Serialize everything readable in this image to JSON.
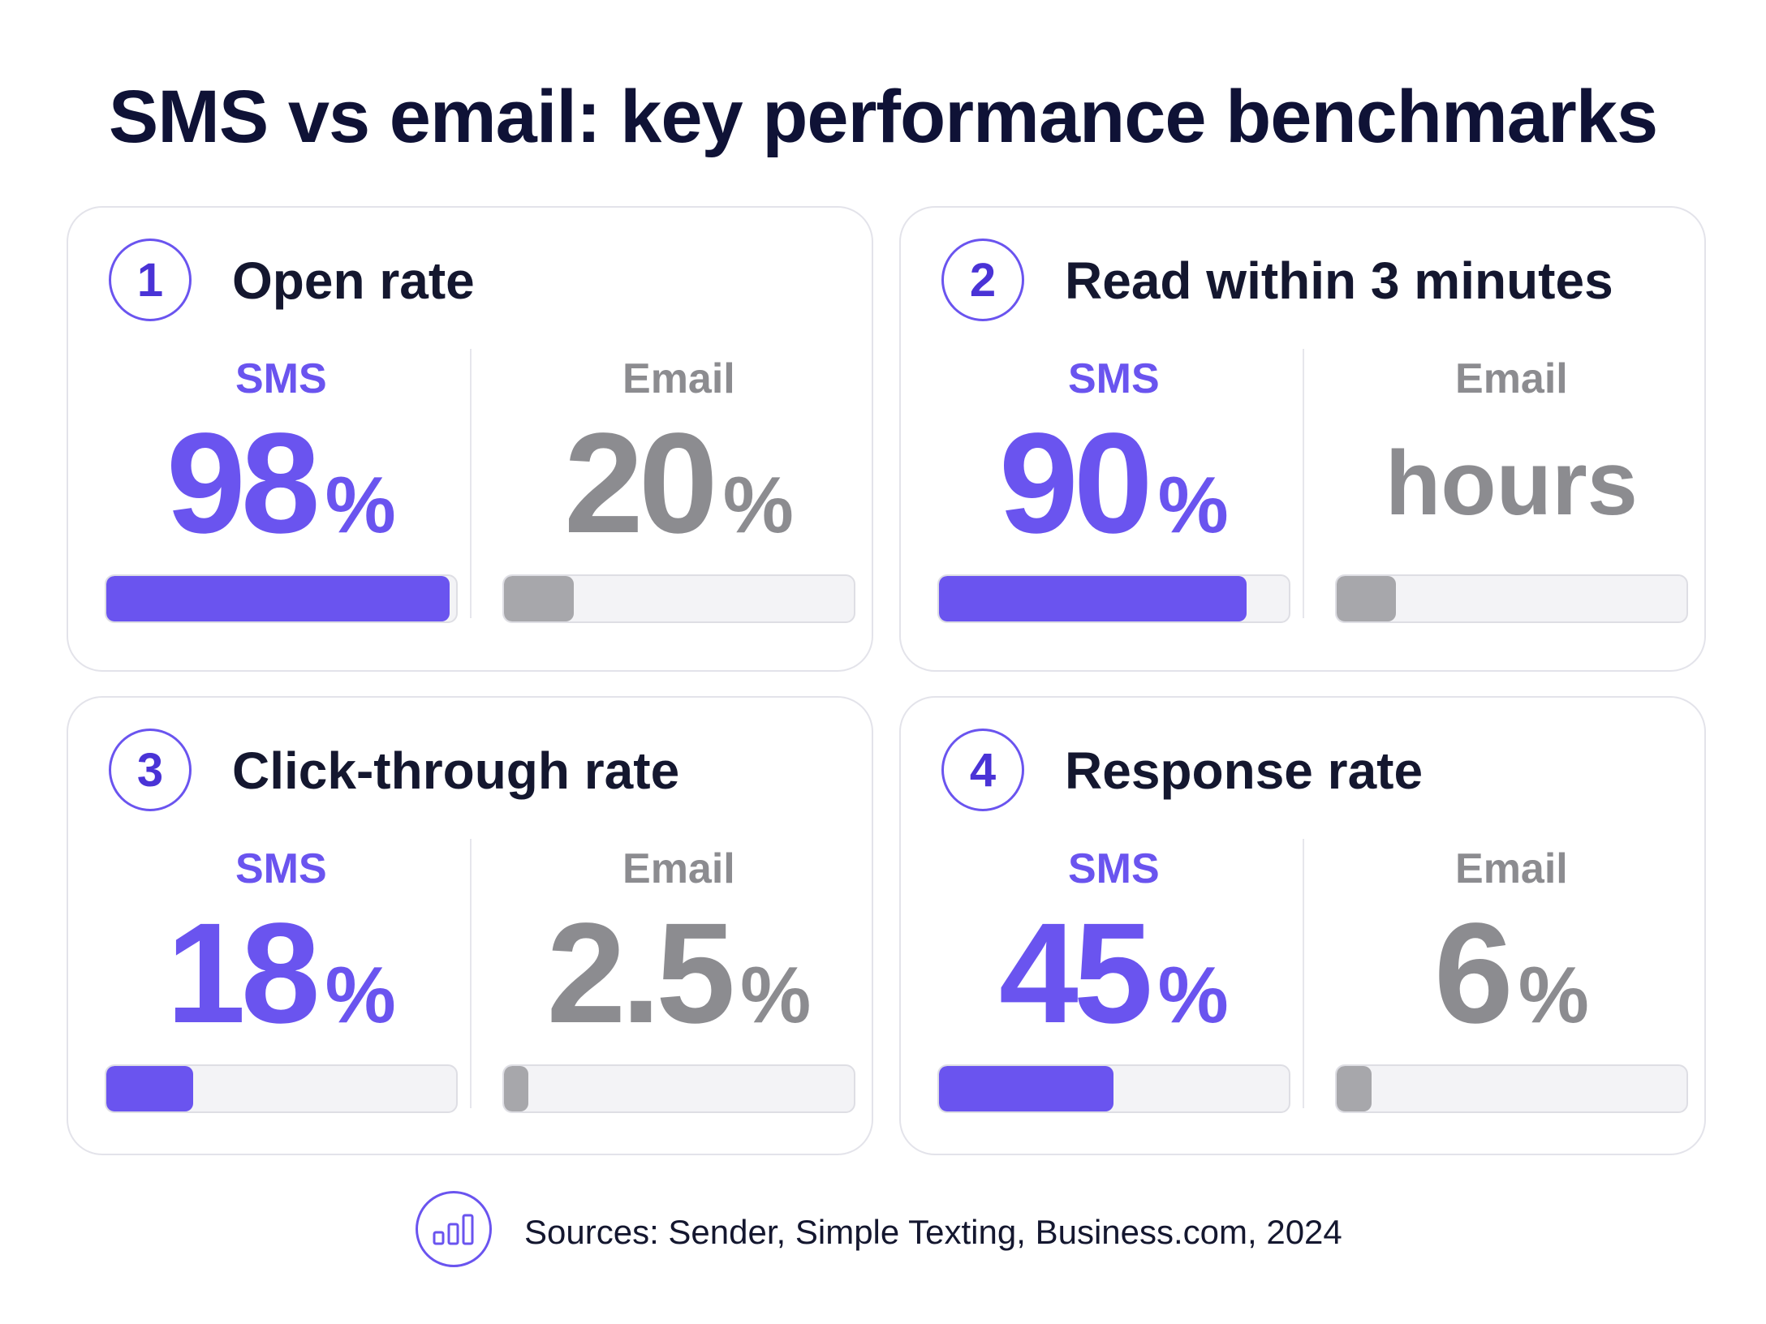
{
  "title": "SMS vs email: key performance benchmarks",
  "colors": {
    "sms": "#6a54ef",
    "email": "#8c8c90",
    "title": "#0f1236"
  },
  "chart_data": [
    {
      "type": "bar",
      "number": "1",
      "title": "Open rate",
      "categories": [
        "SMS",
        "Email"
      ],
      "series": [
        {
          "values": [
            98,
            20
          ]
        }
      ],
      "value_labels": [
        {
          "main": "98",
          "suffix": "%"
        },
        {
          "main": "20",
          "suffix": "%"
        }
      ],
      "bar_fill_percent": [
        98,
        20
      ],
      "ylim": [
        0,
        100
      ]
    },
    {
      "type": "bar",
      "number": "2",
      "title": "Read within 3 minutes",
      "categories": [
        "SMS",
        "Email"
      ],
      "series": [
        {
          "values": [
            90,
            null
          ]
        }
      ],
      "value_labels": [
        {
          "main": "90",
          "suffix": "%"
        },
        {
          "main": "hours",
          "suffix": ""
        }
      ],
      "bar_fill_percent": [
        88,
        17
      ],
      "ylim": [
        0,
        100
      ]
    },
    {
      "type": "bar",
      "number": "3",
      "title": "Click-through rate",
      "categories": [
        "SMS",
        "Email"
      ],
      "series": [
        {
          "values": [
            18,
            2.5
          ]
        }
      ],
      "value_labels": [
        {
          "main": "18",
          "suffix": "%"
        },
        {
          "main": "2.5",
          "suffix": "%"
        }
      ],
      "bar_fill_percent": [
        25,
        7
      ],
      "ylim": [
        0,
        100
      ]
    },
    {
      "type": "bar",
      "number": "4",
      "title": "Response rate",
      "categories": [
        "SMS",
        "Email"
      ],
      "series": [
        {
          "values": [
            45,
            6
          ]
        }
      ],
      "value_labels": [
        {
          "main": "45",
          "suffix": "%"
        },
        {
          "main": "6",
          "suffix": "%"
        }
      ],
      "bar_fill_percent": [
        50,
        10
      ],
      "ylim": [
        0,
        100
      ]
    }
  ],
  "footer": {
    "icon": "bar-chart-icon",
    "text": "Sources: Sender, Simple Texting, Business.com, 2024"
  }
}
